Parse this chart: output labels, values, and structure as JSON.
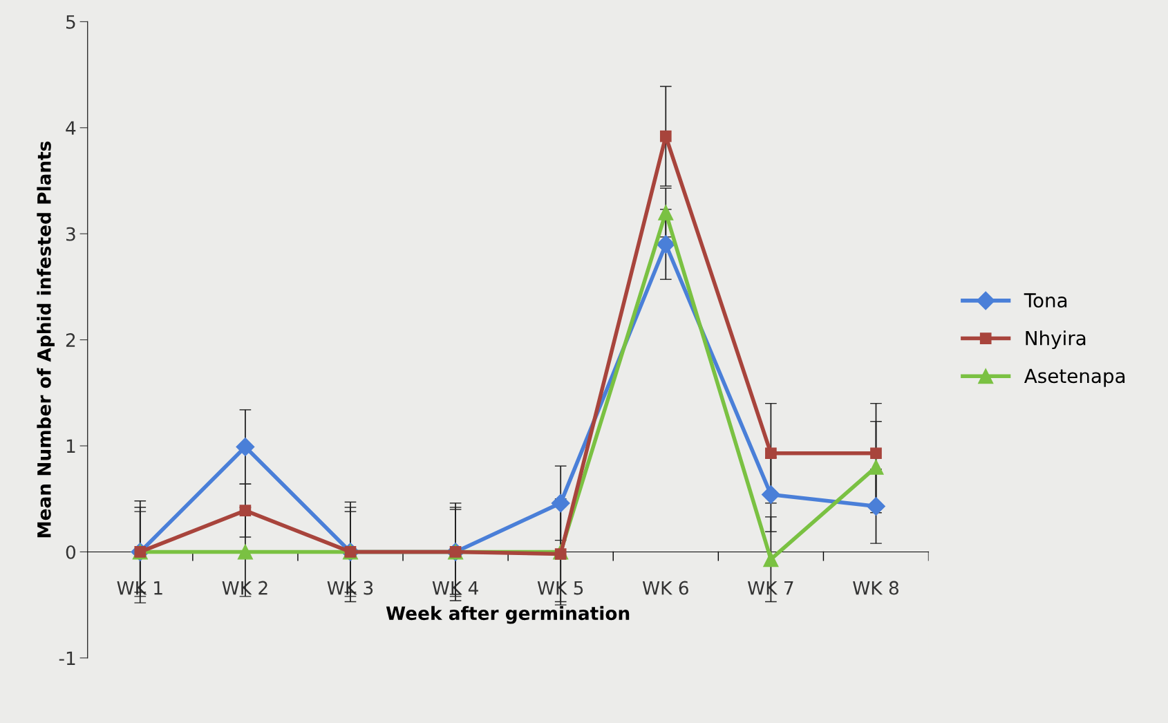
{
  "chart_data": {
    "type": "line",
    "xlabel": "Week after germination",
    "ylabel": "Mean Number of Aphid infested Plants",
    "categories": [
      "WK 1",
      "WK 2",
      "WK 3",
      "WK 4",
      "WK 5",
      "WK 6",
      "WK 7",
      "WK 8"
    ],
    "series": [
      {
        "name": "Tona",
        "color": "#4a7fd8",
        "marker": "diamond",
        "values": [
          0,
          0.99,
          0,
          0,
          0.46,
          2.9,
          0.54,
          0.43
        ],
        "errors": [
          0.48,
          0.35,
          0.47,
          0.46,
          0.35,
          0.33,
          0.35,
          0.35
        ]
      },
      {
        "name": "Nhyira",
        "color": "#a8443c",
        "marker": "square",
        "values": [
          0,
          0.39,
          0,
          0,
          -0.02,
          3.92,
          0.93,
          0.93
        ],
        "errors": [
          0.38,
          0.25,
          0.38,
          0.4,
          0.45,
          0.47,
          0.47,
          0.47
        ]
      },
      {
        "name": "Asetenapa",
        "color": "#7ac142",
        "marker": "triangle",
        "values": [
          0,
          0,
          0,
          0,
          0,
          3.2,
          -0.07,
          0.8
        ],
        "errors": [
          0.42,
          0.42,
          0.42,
          0.42,
          0.5,
          0.23,
          0.4,
          0.43
        ]
      }
    ],
    "ylim": [
      -1,
      5
    ],
    "yticks": [
      -1,
      0,
      1,
      2,
      3,
      4,
      5
    ],
    "grid": false,
    "legend": "right",
    "line_style": "solid"
  }
}
